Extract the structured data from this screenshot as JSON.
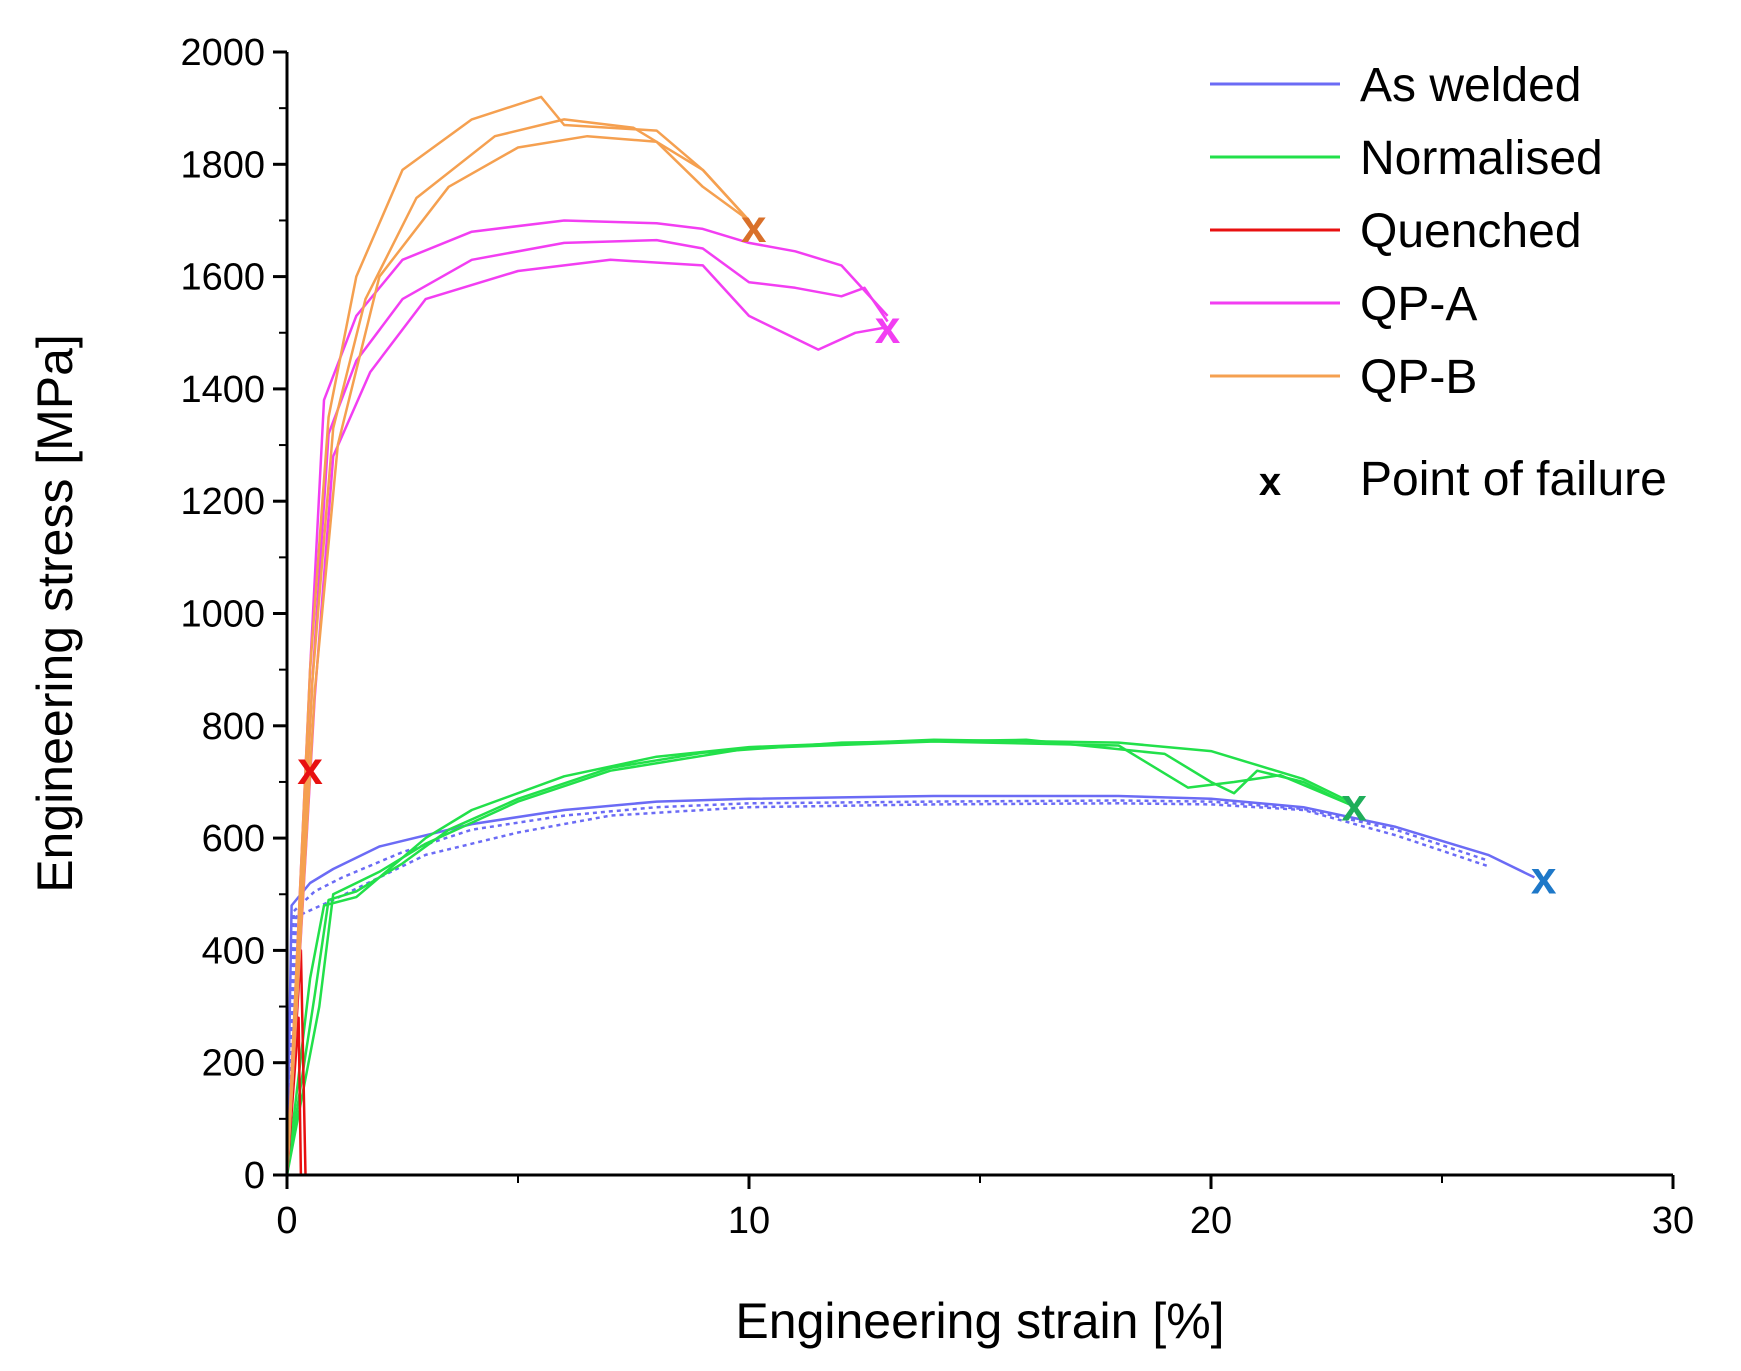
{
  "chart_data": {
    "type": "line",
    "title": "",
    "xlabel": "Engineering strain [%]",
    "ylabel": "Engineering stress [MPa]",
    "xlim": [
      0,
      30
    ],
    "ylim": [
      0,
      2000
    ],
    "xticks": [
      0,
      10,
      20,
      30
    ],
    "yticks": [
      0,
      200,
      400,
      600,
      800,
      1000,
      1200,
      1400,
      1600,
      1800,
      2000
    ],
    "grid": false,
    "legend_position": "top-right",
    "legend_note": {
      "symbol": "x",
      "label": "Point of failure"
    },
    "series": [
      {
        "name": "As welded",
        "color": "#6b6bf5",
        "curves": [
          [
            [
              0,
              0
            ],
            [
              0.1,
              480
            ],
            [
              0.5,
              520
            ],
            [
              1,
              545
            ],
            [
              2,
              585
            ],
            [
              4,
              625
            ],
            [
              6,
              650
            ],
            [
              8,
              665
            ],
            [
              10,
              670
            ],
            [
              14,
              675
            ],
            [
              18,
              675
            ],
            [
              20,
              670
            ],
            [
              22,
              655
            ],
            [
              24,
              620
            ],
            [
              26,
              570
            ],
            [
              27,
              530
            ]
          ],
          [
            [
              0,
              0
            ],
            [
              0.15,
              470
            ],
            [
              0.6,
              505
            ],
            [
              1.2,
              530
            ],
            [
              2.5,
              575
            ],
            [
              4,
              615
            ],
            [
              6,
              640
            ],
            [
              8,
              655
            ],
            [
              10,
              662
            ],
            [
              14,
              665
            ],
            [
              18,
              667
            ],
            [
              20,
              665
            ],
            [
              22,
              652
            ],
            [
              24,
              615
            ],
            [
              26,
              560
            ]
          ],
          [
            [
              0,
              0
            ],
            [
              0.2,
              460
            ],
            [
              1,
              490
            ],
            [
              2,
              530
            ],
            [
              3,
              570
            ],
            [
              5,
              610
            ],
            [
              7,
              640
            ],
            [
              10,
              655
            ],
            [
              14,
              660
            ],
            [
              18,
              662
            ],
            [
              20,
              660
            ],
            [
              22,
              650
            ],
            [
              24,
              605
            ],
            [
              26,
              550
            ]
          ]
        ],
        "failure": [
          27.2,
          530
        ],
        "failure_color": "#1e78c8"
      },
      {
        "name": "Normalised",
        "color": "#22e04a",
        "curves": [
          [
            [
              0,
              0
            ],
            [
              0.5,
              350
            ],
            [
              0.8,
              480
            ],
            [
              1.5,
              495
            ],
            [
              2,
              530
            ],
            [
              3,
              600
            ],
            [
              4,
              650
            ],
            [
              6,
              710
            ],
            [
              8,
              745
            ],
            [
              10,
              762
            ],
            [
              14,
              775
            ],
            [
              18,
              770
            ],
            [
              20,
              755
            ],
            [
              21,
              730
            ],
            [
              22,
              705
            ],
            [
              23,
              665
            ]
          ],
          [
            [
              0,
              0
            ],
            [
              0.6,
              320
            ],
            [
              0.9,
              490
            ],
            [
              1.5,
              505
            ],
            [
              2.5,
              555
            ],
            [
              3.5,
              615
            ],
            [
              5,
              670
            ],
            [
              7,
              725
            ],
            [
              9,
              752
            ],
            [
              12,
              770
            ],
            [
              16,
              775
            ],
            [
              19,
              750
            ],
            [
              20,
              700
            ],
            [
              20.5,
              680
            ],
            [
              21,
              720
            ],
            [
              22,
              700
            ],
            [
              23,
              660
            ]
          ],
          [
            [
              0,
              0
            ],
            [
              0.7,
              300
            ],
            [
              1,
              500
            ],
            [
              2,
              540
            ],
            [
              3,
              590
            ],
            [
              5,
              665
            ],
            [
              7,
              720
            ],
            [
              10,
              760
            ],
            [
              14,
              772
            ],
            [
              18,
              765
            ],
            [
              19.5,
              690
            ],
            [
              20.5,
              700
            ],
            [
              21.5,
              712
            ],
            [
              23,
              660
            ]
          ]
        ],
        "failure": [
          23.1,
          660
        ],
        "failure_color": "#1fae5a"
      },
      {
        "name": "Quenched",
        "color": "#e81010",
        "curves": [
          [
            [
              0,
              0
            ],
            [
              0.2,
              350
            ],
            [
              0.35,
              620
            ],
            [
              0.45,
              730
            ]
          ],
          [
            [
              0,
              0
            ],
            [
              0.25,
              280
            ],
            [
              0.3,
              0
            ]
          ],
          [
            [
              0,
              0
            ],
            [
              0.3,
              400
            ],
            [
              0.4,
              0
            ]
          ]
        ],
        "failure": [
          0.5,
          725
        ],
        "failure_color": "#e81010"
      },
      {
        "name": "QP-A",
        "color": "#f23ef2",
        "curves": [
          [
            [
              0,
              0
            ],
            [
              0.5,
              900
            ],
            [
              0.8,
              1380
            ],
            [
              1.5,
              1530
            ],
            [
              2.5,
              1630
            ],
            [
              4,
              1680
            ],
            [
              6,
              1700
            ],
            [
              8,
              1695
            ],
            [
              9,
              1685
            ],
            [
              10,
              1660
            ],
            [
              11,
              1645
            ],
            [
              12,
              1620
            ],
            [
              13,
              1530
            ]
          ],
          [
            [
              0,
              0
            ],
            [
              0.55,
              880
            ],
            [
              0.9,
              1320
            ],
            [
              1.5,
              1450
            ],
            [
              2.5,
              1560
            ],
            [
              4,
              1630
            ],
            [
              6,
              1660
            ],
            [
              8,
              1665
            ],
            [
              9,
              1650
            ],
            [
              10,
              1590
            ],
            [
              11,
              1580
            ],
            [
              12,
              1565
            ],
            [
              12.5,
              1580
            ],
            [
              13,
              1520
            ]
          ],
          [
            [
              0,
              0
            ],
            [
              0.6,
              850
            ],
            [
              1,
              1280
            ],
            [
              1.8,
              1430
            ],
            [
              3,
              1560
            ],
            [
              5,
              1610
            ],
            [
              7,
              1630
            ],
            [
              9,
              1620
            ],
            [
              10,
              1530
            ],
            [
              11,
              1490
            ],
            [
              11.5,
              1470
            ],
            [
              12.3,
              1500
            ],
            [
              13,
              1510
            ]
          ]
        ],
        "failure": [
          13.0,
          1510
        ],
        "failure_color": "#f23ef2"
      },
      {
        "name": "QP-B",
        "color": "#f5a050",
        "curves": [
          [
            [
              0,
              0
            ],
            [
              0.5,
              900
            ],
            [
              0.9,
              1350
            ],
            [
              1.5,
              1600
            ],
            [
              2.5,
              1790
            ],
            [
              4,
              1880
            ],
            [
              5.5,
              1920
            ],
            [
              6,
              1870
            ],
            [
              8,
              1860
            ],
            [
              9,
              1790
            ],
            [
              10,
              1700
            ]
          ],
          [
            [
              0,
              0
            ],
            [
              0.55,
              880
            ],
            [
              1,
              1330
            ],
            [
              1.7,
              1560
            ],
            [
              2.8,
              1740
            ],
            [
              4.5,
              1850
            ],
            [
              6,
              1880
            ],
            [
              7.5,
              1865
            ],
            [
              9,
              1790
            ],
            [
              10,
              1700
            ]
          ],
          [
            [
              0,
              0
            ],
            [
              0.6,
              860
            ],
            [
              1.1,
              1300
            ],
            [
              2,
              1600
            ],
            [
              3.5,
              1760
            ],
            [
              5,
              1830
            ],
            [
              6.5,
              1850
            ],
            [
              8,
              1840
            ],
            [
              9,
              1760
            ],
            [
              10,
              1700
            ]
          ]
        ],
        "failure": [
          10.1,
          1690
        ],
        "failure_color": "#d9702a"
      }
    ]
  }
}
